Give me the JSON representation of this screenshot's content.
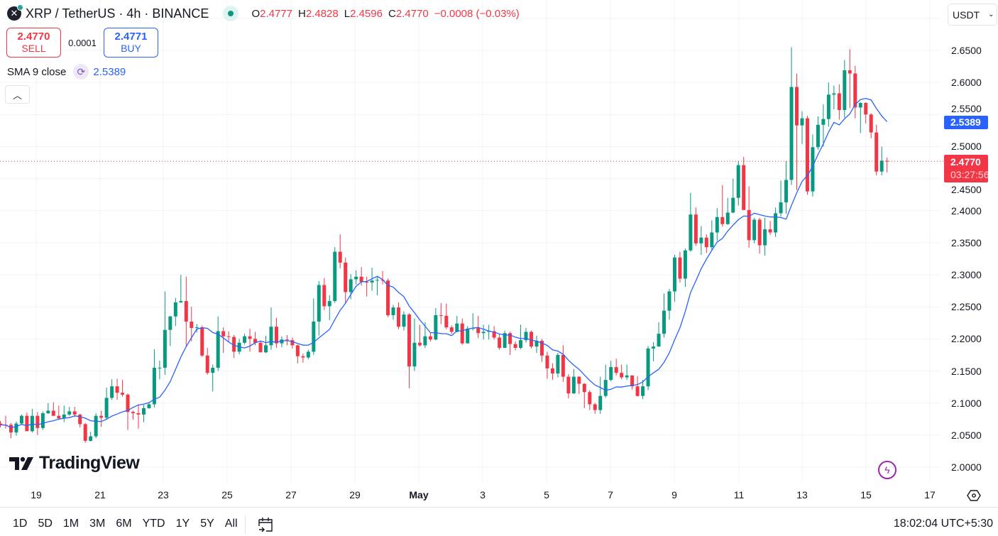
{
  "header": {
    "symbol_icon": "xrp-logo-icon",
    "title": "XRP / TetherUS · 4h · BINANCE",
    "market_status": "open",
    "ohlc": {
      "o_label": "O",
      "o": "2.4777",
      "h_label": "H",
      "h": "2.4828",
      "l_label": "L",
      "l": "2.4596",
      "c_label": "C",
      "c": "2.4770",
      "change": "−0.0008 (−0.03%)"
    }
  },
  "trade": {
    "sell_price": "2.4770",
    "sell_label": "SELL",
    "spread": "0.0001",
    "buy_price": "2.4771",
    "buy_label": "BUY"
  },
  "indicator": {
    "label": "SMA 9 close",
    "value": "2.5389"
  },
  "currency": {
    "value": "USDT"
  },
  "logo": {
    "text": "TradingView"
  },
  "price_tags": {
    "sma": "2.5389",
    "last": "2.4770",
    "countdown": "03:27:56"
  },
  "ranges": [
    "1D",
    "5D",
    "1M",
    "3M",
    "6M",
    "YTD",
    "1Y",
    "5Y",
    "All"
  ],
  "clock": "18:02:04 UTC+5:30",
  "colors": {
    "up": "#089981",
    "down": "#f23645",
    "sma": "#2962ff",
    "accent": "#2962ff"
  },
  "chart_data": {
    "type": "candlestick",
    "interval": "4h",
    "ylim": [
      2.0,
      2.7
    ],
    "y_ticks": [
      "2.0000",
      "2.0500",
      "2.1000",
      "2.1500",
      "2.2000",
      "2.2500",
      "2.3000",
      "2.3500",
      "2.4000",
      "2.4500",
      "2.5000",
      "2.5500",
      "2.6000",
      "2.6500"
    ],
    "x_ticks": [
      "19",
      "21",
      "23",
      "25",
      "27",
      "29",
      "May",
      "3",
      "5",
      "7",
      "9",
      "11",
      "13",
      "15",
      "17"
    ],
    "grid": true,
    "last_price_line": 2.477,
    "overlay": {
      "type": "SMA",
      "period": 9,
      "source": "close"
    },
    "candles_ohlc": [
      [
        2.068,
        2.072,
        2.062,
        2.066
      ],
      [
        2.066,
        2.08,
        2.06,
        2.065
      ],
      [
        2.066,
        2.069,
        2.045,
        2.054
      ],
      [
        2.054,
        2.071,
        2.049,
        2.068
      ],
      [
        2.068,
        2.082,
        2.066,
        2.08
      ],
      [
        2.08,
        2.085,
        2.056,
        2.056
      ],
      [
        2.056,
        2.091,
        2.054,
        2.08
      ],
      [
        2.08,
        2.086,
        2.05,
        2.061
      ],
      [
        2.061,
        2.087,
        2.058,
        2.084
      ],
      [
        2.084,
        2.1,
        2.083,
        2.088
      ],
      [
        2.088,
        2.101,
        2.08,
        2.08
      ],
      [
        2.08,
        2.096,
        2.074,
        2.076
      ],
      [
        2.076,
        2.096,
        2.07,
        2.082
      ],
      [
        2.082,
        2.094,
        2.08,
        2.087
      ],
      [
        2.087,
        2.094,
        2.078,
        2.082
      ],
      [
        2.082,
        2.083,
        2.062,
        2.067
      ],
      [
        2.067,
        2.069,
        2.038,
        2.041
      ],
      [
        2.041,
        2.055,
        2.04,
        2.048
      ],
      [
        2.048,
        2.084,
        2.045,
        2.08
      ],
      [
        2.08,
        2.088,
        2.063,
        2.077
      ],
      [
        2.077,
        2.124,
        2.075,
        2.108
      ],
      [
        2.108,
        2.137,
        2.105,
        2.126
      ],
      [
        2.126,
        2.138,
        2.105,
        2.116
      ],
      [
        2.116,
        2.136,
        2.11,
        2.113
      ],
      [
        2.113,
        2.115,
        2.058,
        2.086
      ],
      [
        2.086,
        2.088,
        2.074,
        2.084
      ],
      [
        2.084,
        2.098,
        2.06,
        2.082
      ],
      [
        2.082,
        2.097,
        2.07,
        2.092
      ],
      [
        2.092,
        2.101,
        2.091,
        2.098
      ],
      [
        2.098,
        2.184,
        2.093,
        2.155
      ],
      [
        2.155,
        2.166,
        2.137,
        2.155
      ],
      [
        2.155,
        2.274,
        2.144,
        2.214
      ],
      [
        2.214,
        2.236,
        2.189,
        2.235
      ],
      [
        2.235,
        2.264,
        2.22,
        2.257
      ],
      [
        2.257,
        2.3,
        2.256,
        2.259
      ],
      [
        2.259,
        2.297,
        2.188,
        2.227
      ],
      [
        2.227,
        2.25,
        2.196,
        2.217
      ],
      [
        2.217,
        2.223,
        2.21,
        2.218
      ],
      [
        2.218,
        2.221,
        2.172,
        2.174
      ],
      [
        2.174,
        2.186,
        2.144,
        2.147
      ],
      [
        2.147,
        2.16,
        2.118,
        2.155
      ],
      [
        2.155,
        2.235,
        2.15,
        2.212
      ],
      [
        2.212,
        2.218,
        2.178,
        2.204
      ],
      [
        2.204,
        2.212,
        2.195,
        2.203
      ],
      [
        2.203,
        2.206,
        2.17,
        2.18
      ],
      [
        2.18,
        2.2,
        2.176,
        2.194
      ],
      [
        2.194,
        2.208,
        2.191,
        2.204
      ],
      [
        2.204,
        2.216,
        2.18,
        2.2
      ],
      [
        2.2,
        2.211,
        2.19,
        2.194
      ],
      [
        2.194,
        2.197,
        2.179,
        2.179
      ],
      [
        2.179,
        2.205,
        2.178,
        2.19
      ],
      [
        2.19,
        2.249,
        2.183,
        2.219
      ],
      [
        2.219,
        2.233,
        2.186,
        2.193
      ],
      [
        2.193,
        2.204,
        2.187,
        2.199
      ],
      [
        2.199,
        2.206,
        2.19,
        2.198
      ],
      [
        2.198,
        2.202,
        2.185,
        2.19
      ],
      [
        2.19,
        2.191,
        2.162,
        2.173
      ],
      [
        2.173,
        2.177,
        2.163,
        2.171
      ],
      [
        2.171,
        2.183,
        2.168,
        2.18
      ],
      [
        2.18,
        2.263,
        2.175,
        2.227
      ],
      [
        2.227,
        2.29,
        2.205,
        2.284
      ],
      [
        2.284,
        2.295,
        2.245,
        2.251
      ],
      [
        2.251,
        2.268,
        2.229,
        2.259
      ],
      [
        2.259,
        2.343,
        2.256,
        2.336
      ],
      [
        2.336,
        2.363,
        2.31,
        2.319
      ],
      [
        2.319,
        2.327,
        2.255,
        2.273
      ],
      [
        2.273,
        2.301,
        2.262,
        2.293
      ],
      [
        2.293,
        2.307,
        2.285,
        2.297
      ],
      [
        2.297,
        2.312,
        2.283,
        2.289
      ],
      [
        2.289,
        2.297,
        2.266,
        2.288
      ],
      [
        2.288,
        2.311,
        2.275,
        2.291
      ],
      [
        2.291,
        2.296,
        2.268,
        2.292
      ],
      [
        2.292,
        2.306,
        2.285,
        2.291
      ],
      [
        2.291,
        2.294,
        2.234,
        2.237
      ],
      [
        2.237,
        2.253,
        2.23,
        2.249
      ],
      [
        2.249,
        2.257,
        2.215,
        2.219
      ],
      [
        2.219,
        2.243,
        2.213,
        2.238
      ],
      [
        2.238,
        2.24,
        2.123,
        2.157
      ],
      [
        2.157,
        2.232,
        2.15,
        2.194
      ],
      [
        2.194,
        2.222,
        2.188,
        2.19
      ],
      [
        2.19,
        2.226,
        2.186,
        2.204
      ],
      [
        2.204,
        2.21,
        2.196,
        2.199
      ],
      [
        2.199,
        2.248,
        2.198,
        2.237
      ],
      [
        2.237,
        2.256,
        2.223,
        2.236
      ],
      [
        2.236,
        2.255,
        2.215,
        2.218
      ],
      [
        2.218,
        2.221,
        2.208,
        2.211
      ],
      [
        2.211,
        2.236,
        2.21,
        2.224
      ],
      [
        2.224,
        2.232,
        2.191,
        2.193
      ],
      [
        2.193,
        2.22,
        2.193,
        2.216
      ],
      [
        2.216,
        2.24,
        2.213,
        2.217
      ],
      [
        2.217,
        2.236,
        2.201,
        2.209
      ],
      [
        2.209,
        2.222,
        2.199,
        2.211
      ],
      [
        2.211,
        2.222,
        2.199,
        2.212
      ],
      [
        2.212,
        2.22,
        2.199,
        2.202
      ],
      [
        2.202,
        2.207,
        2.183,
        2.186
      ],
      [
        2.186,
        2.213,
        2.186,
        2.209
      ],
      [
        2.209,
        2.211,
        2.175,
        2.192
      ],
      [
        2.192,
        2.196,
        2.182,
        2.186
      ],
      [
        2.186,
        2.222,
        2.184,
        2.198
      ],
      [
        2.198,
        2.217,
        2.194,
        2.211
      ],
      [
        2.211,
        2.213,
        2.185,
        2.188
      ],
      [
        2.188,
        2.205,
        2.178,
        2.197
      ],
      [
        2.197,
        2.2,
        2.164,
        2.174
      ],
      [
        2.174,
        2.18,
        2.138,
        2.154
      ],
      [
        2.154,
        2.162,
        2.136,
        2.146
      ],
      [
        2.146,
        2.178,
        2.14,
        2.175
      ],
      [
        2.175,
        2.19,
        2.133,
        2.141
      ],
      [
        2.141,
        2.145,
        2.107,
        2.115
      ],
      [
        2.115,
        2.153,
        2.114,
        2.141
      ],
      [
        2.141,
        2.142,
        2.114,
        2.13
      ],
      [
        2.13,
        2.131,
        2.092,
        2.117
      ],
      [
        2.117,
        2.12,
        2.089,
        2.098
      ],
      [
        2.098,
        2.1,
        2.083,
        2.089
      ],
      [
        2.089,
        2.141,
        2.083,
        2.111
      ],
      [
        2.111,
        2.16,
        2.108,
        2.136
      ],
      [
        2.136,
        2.166,
        2.134,
        2.156
      ],
      [
        2.156,
        2.169,
        2.143,
        2.147
      ],
      [
        2.147,
        2.16,
        2.137,
        2.14
      ],
      [
        2.14,
        2.16,
        2.136,
        2.143
      ],
      [
        2.143,
        2.143,
        2.121,
        2.126
      ],
      [
        2.126,
        2.142,
        2.11,
        2.111
      ],
      [
        2.111,
        2.136,
        2.106,
        2.126
      ],
      [
        2.126,
        2.189,
        2.12,
        2.185
      ],
      [
        2.185,
        2.195,
        2.165,
        2.188
      ],
      [
        2.188,
        2.226,
        2.188,
        2.208
      ],
      [
        2.208,
        2.271,
        2.202,
        2.244
      ],
      [
        2.244,
        2.278,
        2.23,
        2.274
      ],
      [
        2.274,
        2.331,
        2.258,
        2.327
      ],
      [
        2.327,
        2.336,
        2.288,
        2.294
      ],
      [
        2.294,
        2.341,
        2.281,
        2.338
      ],
      [
        2.338,
        2.428,
        2.336,
        2.394
      ],
      [
        2.394,
        2.405,
        2.345,
        2.349
      ],
      [
        2.349,
        2.376,
        2.331,
        2.358
      ],
      [
        2.358,
        2.363,
        2.334,
        2.343
      ],
      [
        2.343,
        2.385,
        2.338,
        2.366
      ],
      [
        2.366,
        2.404,
        2.353,
        2.39
      ],
      [
        2.39,
        2.44,
        2.375,
        2.379
      ],
      [
        2.379,
        2.42,
        2.378,
        2.397
      ],
      [
        2.397,
        2.45,
        2.396,
        2.42
      ],
      [
        2.42,
        2.478,
        2.408,
        2.471
      ],
      [
        2.471,
        2.484,
        2.409,
        2.401
      ],
      [
        2.401,
        2.438,
        2.342,
        2.354
      ],
      [
        2.354,
        2.389,
        2.349,
        2.386
      ],
      [
        2.386,
        2.389,
        2.333,
        2.346
      ],
      [
        2.346,
        2.389,
        2.33,
        2.371
      ],
      [
        2.371,
        2.384,
        2.362,
        2.366
      ],
      [
        2.366,
        2.405,
        2.359,
        2.396
      ],
      [
        2.396,
        2.447,
        2.391,
        2.413
      ],
      [
        2.413,
        2.477,
        2.395,
        2.448
      ],
      [
        2.448,
        2.655,
        2.44,
        2.593
      ],
      [
        2.593,
        2.614,
        2.432,
        2.533
      ],
      [
        2.533,
        2.555,
        2.504,
        2.544
      ],
      [
        2.544,
        2.548,
        2.425,
        2.43
      ],
      [
        2.43,
        2.519,
        2.422,
        2.499
      ],
      [
        2.499,
        2.547,
        2.495,
        2.534
      ],
      [
        2.534,
        2.566,
        2.5,
        2.543
      ],
      [
        2.543,
        2.6,
        2.531,
        2.581
      ],
      [
        2.581,
        2.595,
        2.558,
        2.583
      ],
      [
        2.583,
        2.597,
        2.542,
        2.557
      ],
      [
        2.557,
        2.635,
        2.545,
        2.619
      ],
      [
        2.619,
        2.652,
        2.56,
        2.614
      ],
      [
        2.614,
        2.626,
        2.544,
        2.561
      ],
      [
        2.561,
        2.569,
        2.521,
        2.568
      ],
      [
        2.568,
        2.569,
        2.536,
        2.55
      ],
      [
        2.55,
        2.552,
        2.513,
        2.522
      ],
      [
        2.522,
        2.534,
        2.455,
        2.461
      ],
      [
        2.461,
        2.5,
        2.455,
        2.478
      ],
      [
        2.4777,
        2.4828,
        2.4596,
        2.477
      ]
    ]
  }
}
